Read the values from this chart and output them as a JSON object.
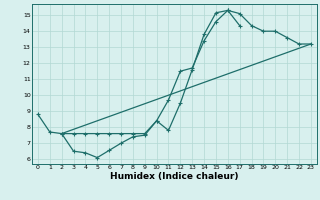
{
  "xlabel": "Humidex (Indice chaleur)",
  "bg_color": "#d8f0ee",
  "grid_color": "#b2d8d4",
  "line_color": "#1e6e6a",
  "xlim": [
    -0.5,
    23.5
  ],
  "ylim": [
    5.7,
    15.7
  ],
  "xtick_labels": [
    "0",
    "1",
    "2",
    "3",
    "4",
    "5",
    "6",
    "7",
    "8",
    "9",
    "10",
    "11",
    "12",
    "13",
    "14",
    "15",
    "16",
    "17",
    "18",
    "19",
    "20",
    "21",
    "22",
    "23"
  ],
  "ytick_labels": [
    "6",
    "7",
    "8",
    "9",
    "10",
    "11",
    "12",
    "13",
    "14",
    "15"
  ],
  "line1_x": [
    0,
    1,
    2,
    3,
    4,
    5,
    6,
    7,
    8,
    9,
    10,
    11,
    12,
    13,
    14,
    15,
    16,
    17,
    18,
    19,
    20,
    21,
    22,
    23
  ],
  "line1_y": [
    8.8,
    7.7,
    7.6,
    6.5,
    6.4,
    6.1,
    6.55,
    7.0,
    7.4,
    7.5,
    8.4,
    7.8,
    9.5,
    11.6,
    13.8,
    15.15,
    15.3,
    15.1,
    14.35,
    14.0,
    14.0,
    13.6,
    13.2,
    13.2
  ],
  "line2_x": [
    2,
    3,
    4,
    5,
    6,
    7,
    8,
    9,
    10,
    11,
    12,
    13,
    14,
    15,
    16,
    17
  ],
  "line2_y": [
    7.6,
    7.6,
    7.6,
    7.6,
    7.6,
    7.6,
    7.6,
    7.6,
    8.4,
    9.7,
    11.5,
    11.7,
    13.4,
    14.6,
    15.3,
    14.35
  ],
  "line3_x": [
    2,
    23
  ],
  "line3_y": [
    7.6,
    13.2
  ],
  "xlabel_fontsize": 6.5,
  "tick_fontsize": 4.5
}
